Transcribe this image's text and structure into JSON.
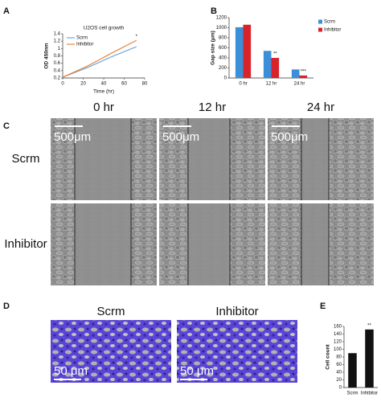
{
  "chart_data": [
    {
      "type": "line",
      "panel": "A",
      "title": "U2OS cell growth",
      "xlabel": "Time (hr)",
      "ylabel": "OD 450nm",
      "x": [
        0,
        12,
        24,
        48,
        72
      ],
      "xlim": [
        0,
        80
      ],
      "xticks": [
        0,
        20,
        40,
        60,
        80
      ],
      "ylim": [
        0.2,
        1.4
      ],
      "yticks": [
        0.2,
        0.4,
        0.6,
        0.8,
        1,
        1.2,
        1.4
      ],
      "series": [
        {
          "name": "Scrm",
          "color": "#6fa8dc",
          "values": [
            0.22,
            0.35,
            0.48,
            0.78,
            1.05
          ]
        },
        {
          "name": "Inhibitor",
          "color": "#e8833a",
          "values": [
            0.22,
            0.37,
            0.52,
            0.88,
            1.22
          ]
        }
      ],
      "legend": "upper left",
      "annotations": [
        "*"
      ]
    },
    {
      "type": "bar",
      "panel": "B",
      "ylabel": "Gap size (μm)",
      "categories": [
        "0 hr",
        "12 hr",
        "24 hr"
      ],
      "ylim": [
        0,
        1200
      ],
      "yticks": [
        0,
        200,
        400,
        600,
        800,
        1000,
        1200
      ],
      "series": [
        {
          "name": "Scrm",
          "color": "#3b8fd9",
          "values": [
            1010,
            540,
            170
          ]
        },
        {
          "name": "Inhibitor",
          "color": "#d8232a",
          "values": [
            1060,
            400,
            50
          ]
        }
      ],
      "legend": "right",
      "annotations": [
        "**",
        "***"
      ]
    },
    {
      "type": "bar",
      "panel": "E",
      "ylabel": "Cell count",
      "categories": [
        "Scrm",
        "Inhibitor"
      ],
      "ylim": [
        0,
        160
      ],
      "yticks": [
        0,
        20,
        40,
        60,
        80,
        100,
        120,
        140,
        160
      ],
      "series": [
        {
          "name": null,
          "color": "#111111",
          "values": [
            90,
            152
          ]
        }
      ],
      "legend": "none",
      "annotations": [
        "**"
      ]
    }
  ],
  "wound_assay": {
    "panel": "C",
    "columns": [
      "0 hr",
      "12 hr",
      "24 hr"
    ],
    "rows": [
      "Scrm",
      "Inhibitor"
    ],
    "scale_bar": "500μm"
  },
  "invasion_assay": {
    "panel": "D",
    "columns": [
      "Scrm",
      "Inhibitor"
    ],
    "scale_bar": "50 μm"
  }
}
